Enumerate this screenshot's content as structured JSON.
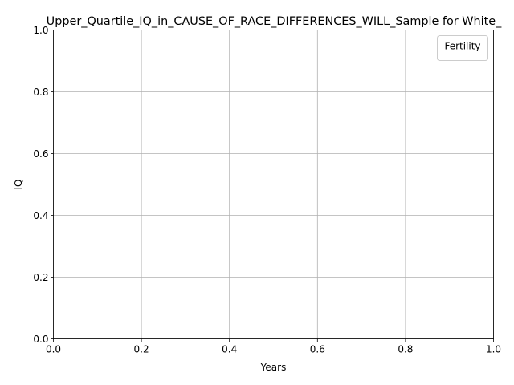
{
  "chart_data": {
    "type": "line",
    "title": "Upper_Quartile_IQ_in_CAUSE_OF_RACE_DIFFERENCES_WILL_Sample for White_",
    "xlabel": "Years",
    "ylabel": "IQ",
    "xlim": [
      0.0,
      1.0
    ],
    "ylim": [
      0.0,
      1.0
    ],
    "x_ticks": [
      0.0,
      0.2,
      0.4,
      0.6,
      0.8,
      1.0
    ],
    "y_ticks": [
      0.0,
      0.2,
      0.4,
      0.6,
      0.8,
      1.0
    ],
    "x_tick_labels": [
      "0.0",
      "0.2",
      "0.4",
      "0.6",
      "0.8",
      "1.0"
    ],
    "y_tick_labels": [
      "0.0",
      "0.2",
      "0.4",
      "0.6",
      "0.8",
      "1.0"
    ],
    "grid": true,
    "legend": {
      "title": "Fertility",
      "placement": "upper-right",
      "entries": []
    },
    "series": [],
    "colors": {
      "grid": "#b0b0b0",
      "axes": "#000000",
      "background": "#ffffff"
    }
  }
}
